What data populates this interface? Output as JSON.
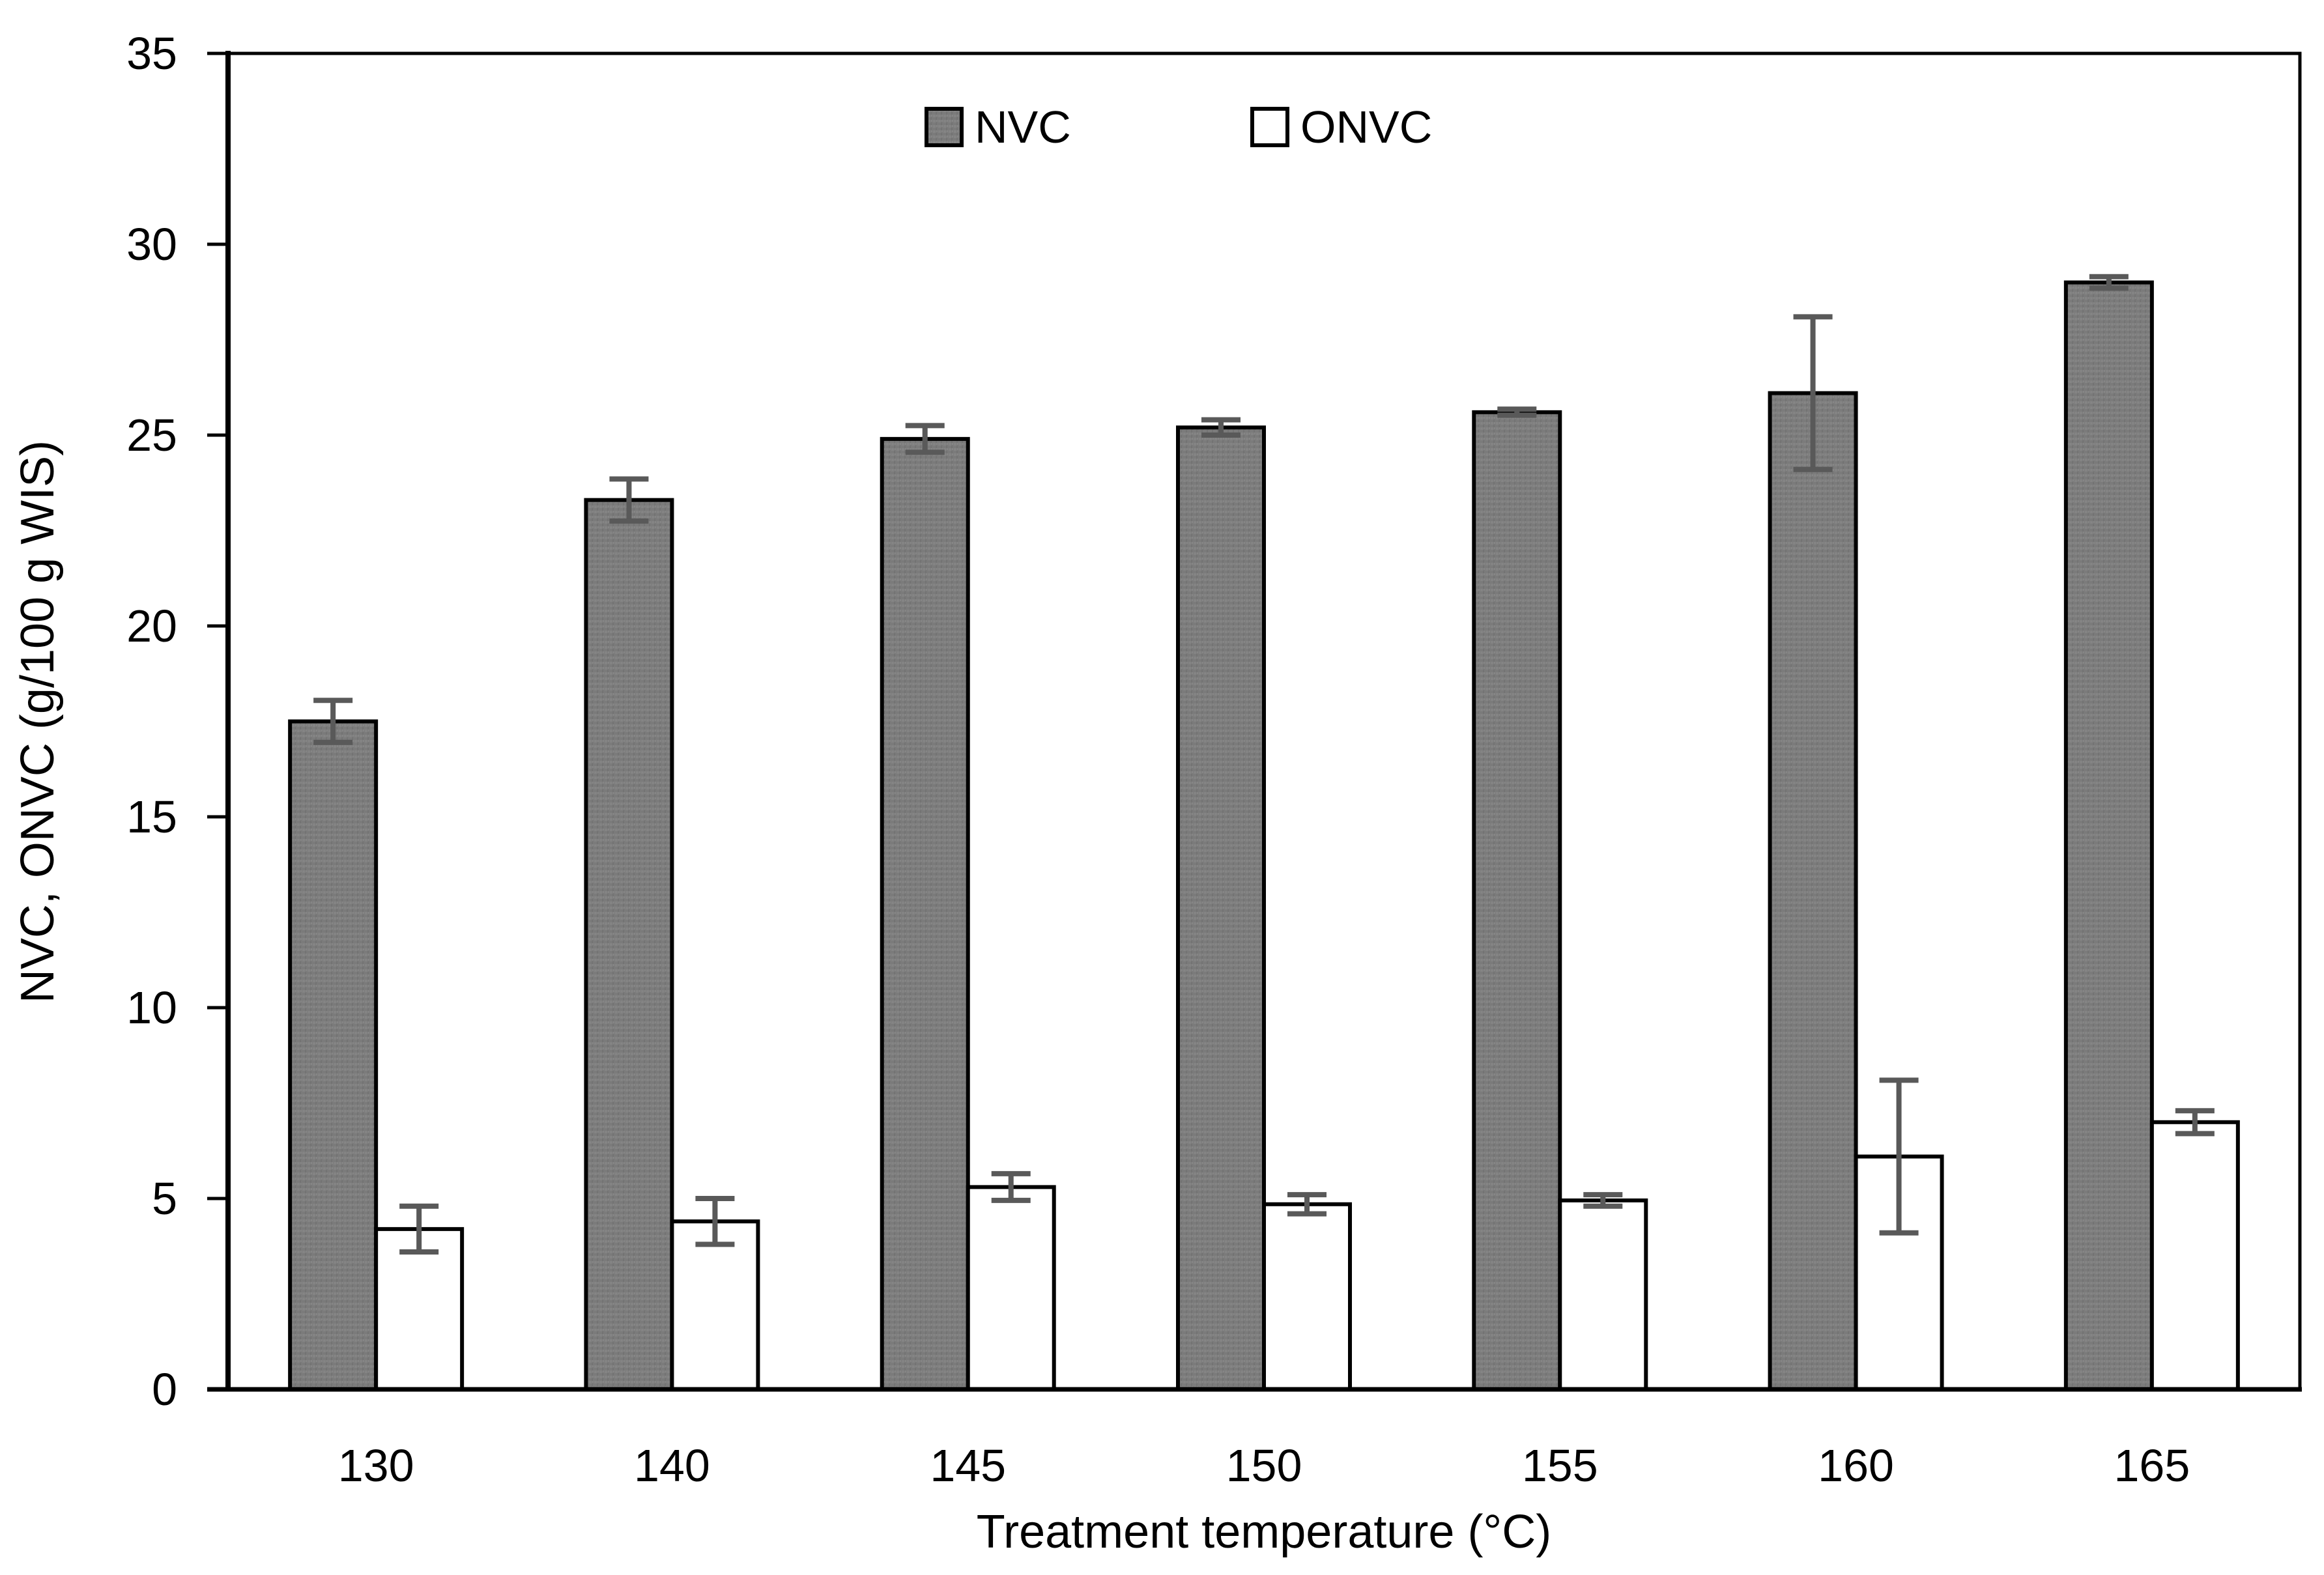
{
  "chart_data": {
    "type": "bar",
    "title": "",
    "xlabel": "Treatment temperature (°C)",
    "ylabel": "NVC, ONVC (g/100 g WIS)",
    "categories": [
      "130",
      "140",
      "145",
      "150",
      "155",
      "160",
      "165"
    ],
    "series": [
      {
        "name": "NVC",
        "fill_color": "#7b7b7b",
        "values": [
          17.5,
          23.3,
          24.9,
          25.2,
          25.6,
          26.1,
          29.0
        ],
        "errors": [
          0.55,
          0.55,
          0.35,
          0.2,
          0.08,
          2.0,
          0.15
        ]
      },
      {
        "name": "ONVC",
        "fill_color": "#ffffff",
        "values": [
          4.2,
          4.4,
          5.3,
          4.85,
          4.95,
          6.1,
          7.0
        ],
        "errors": [
          0.6,
          0.6,
          0.35,
          0.25,
          0.15,
          2.0,
          0.3
        ]
      }
    ],
    "ylim": [
      0,
      35
    ],
    "ytick_step": 5,
    "y_tick_labels": [
      "0",
      "5",
      "10",
      "15",
      "20",
      "25",
      "30",
      "35"
    ],
    "grid": false,
    "legend_position": "top-center",
    "bar_outline_color": "#000000",
    "error_bar_color": "#595959",
    "axis_color": "#000000"
  }
}
